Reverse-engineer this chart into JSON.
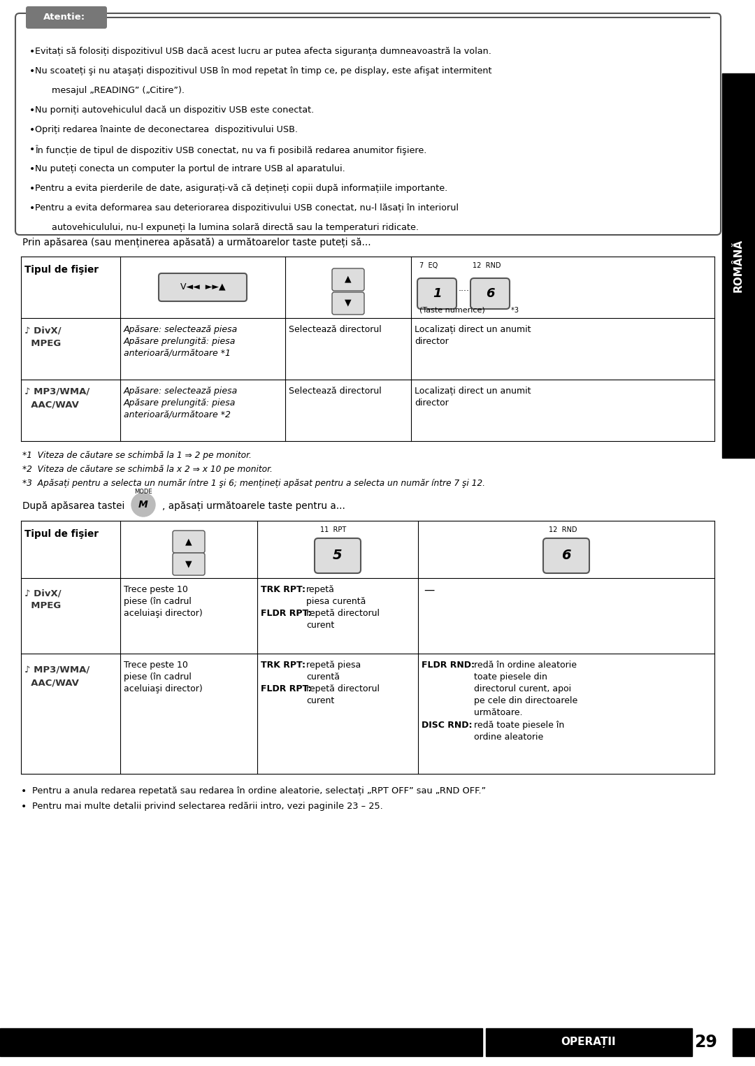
{
  "background_color": "#ffffff",
  "attention_label": "Atentie:",
  "attention_bullets": [
    "Evitati sa folositi dispozitivul USB daca acest lucru ar putea afecta siguranta dumneavoastra la volan.",
    "Nu scoateti si nu atasati dispozitivul USB in mod repetat in timp ce, pe display, este afisat intermitent",
    "mesajul \"READING\" (\"Citire\").",
    "Nu porniti autovehiculul daca un dispozitiv USB este conectat.",
    "Opriti redarea inainte de deconectarea  dispozitivului USB.",
    "In functie de tipul de dispozitiv USB conectat, nu va fi posibila redarea anumitor fisiere.",
    "Nu puteti conecta un computer la portul de intrare USB al aparatului.",
    "Pentru a evita pierderile de date, asigurati-va ca detineti copii dupa informatiile importante.",
    "Pentru a evita deformarea sau deteriorarea dispozitivului USB conectat, nu-l lasati in interiorul",
    "autovehiculului, nu-l expuneti la lumina solara directa sau la temperaturi ridicate."
  ],
  "intro_text1": "Prin apăsarea (sau menținerea apăsată) a următoarelor taste puteți să...",
  "footnotes1": [
    "*1  Viteza de căutare se schimbă la 1 ⇒ 2 pe monitor.",
    "*2  Viteza de căutare se schimbă la x 2 ⇒ x 10 pe monitor.",
    "*3  Apăsați pentru a selecta un număr íntre 1 şi 6; mențineți apăsat pentru a selecta un număr íntre 7 şi 12."
  ],
  "intro_text2_prefix": "După apăsarea tastei",
  "intro_text2_suffix": ", apăsați următoarele taste pentru a...",
  "footer_label": "OPERAȚII",
  "footer_number": "29",
  "sidebar_text": "ROMÂNĂ",
  "sidebar_bg": "#000000",
  "sidebar_color": "#ffffff",
  "footer_bullet1": "Pentru a anula redarea repetată sau redarea în ordine aleatorie, selectați „RPT OFF” sau „RND OFF.”",
  "footer_bullet2": "Pentru mai multe detalii privind selectarea redării intro, vezi paginile 23 – 25."
}
